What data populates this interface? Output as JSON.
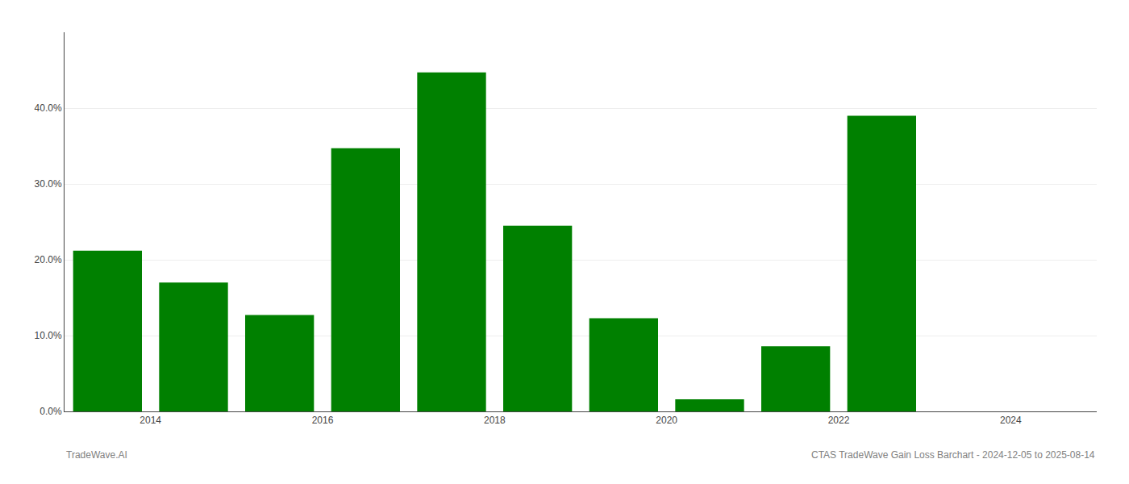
{
  "chart_data": {
    "type": "bar",
    "x": [
      2013.5,
      2014.5,
      2015.5,
      2016.5,
      2017.5,
      2018.5,
      2019.5,
      2020.5,
      2021.5,
      2022.5
    ],
    "values": [
      0.212,
      0.17,
      0.127,
      0.347,
      0.447,
      0.245,
      0.123,
      0.016,
      0.086,
      0.39
    ],
    "color": "#008000",
    "xlim": [
      2013.0,
      2025.0
    ],
    "xticks": [
      2014,
      2016,
      2018,
      2020,
      2022,
      2024
    ],
    "ylim": [
      0,
      0.5
    ],
    "yticks": [
      {
        "value": 0.0,
        "label": "0.0%"
      },
      {
        "value": 0.1,
        "label": "10.0%"
      },
      {
        "value": 0.2,
        "label": "20.0%"
      },
      {
        "value": 0.3,
        "label": "30.0%"
      },
      {
        "value": 0.4,
        "label": "40.0%"
      }
    ],
    "grid": true,
    "annotations": [
      "TradeWave.AI",
      "CTAS TradeWave Gain Loss Barchart - 2024-12-05 to 2025-08-14"
    ]
  }
}
